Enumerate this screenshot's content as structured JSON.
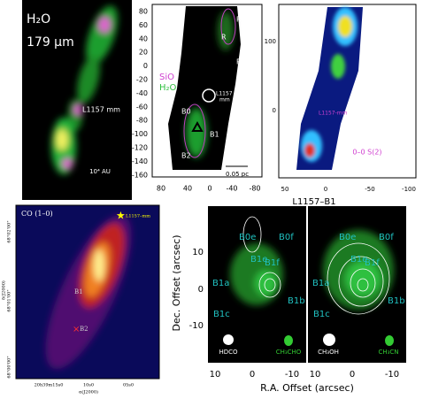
{
  "panel_h2o": {
    "title": "H₂O",
    "wavelength": "179 µm",
    "source": "L1157 mm",
    "scale": "10⁴ AU"
  },
  "panel_sio": {
    "label": "L1157",
    "regions": [
      "R2",
      "R",
      "R0",
      "B0",
      "B1",
      "B2"
    ],
    "legend": [
      "SiO",
      "H₂O"
    ],
    "source": [
      "L1157",
      "mm"
    ],
    "scale": "0.05 pc",
    "yticks": [
      "80",
      "60",
      "40",
      "20",
      "0",
      "-20",
      "-40",
      "-60",
      "-80",
      "-100",
      "-120",
      "-140",
      "-160"
    ],
    "xticks": [
      "80",
      "40",
      "0",
      "-40",
      "-80"
    ]
  },
  "panel_h2": {
    "source": "L1157-mm",
    "line": "0–0 S(2)",
    "yticks": [
      "100",
      "0"
    ],
    "xticks": [
      "50",
      "0",
      "-50",
      "-100"
    ],
    "caption": "L1157–B1"
  },
  "panel_co": {
    "title": "CO (1–0)",
    "source": "L1157–mm",
    "regions": [
      "B1",
      "B2"
    ],
    "yticks": [
      "68°02'00\"",
      "68°01'00\"",
      "68°00'00\""
    ],
    "xticks": [
      "20h39m15s0",
      "10s0",
      "05s0"
    ],
    "ylabel": "δ(J2000)",
    "xlabel": "α(J2000)"
  },
  "panel_b1": {
    "maps": [
      {
        "knots": [
          "B0e",
          "B0f",
          "B1e",
          "B1f",
          "B1a",
          "B1b",
          "B1c"
        ],
        "beams": [
          "HDCO",
          "CH₃CHO"
        ],
        "xticks": [
          "10",
          "0",
          "-10"
        ]
      },
      {
        "knots": [
          "B0e",
          "B0f",
          "B1e",
          "B1f",
          "B1a",
          "B1b",
          "B1c"
        ],
        "beams": [
          "CH₃OH",
          "CH₃CN"
        ],
        "xticks": [
          "10",
          "0",
          "-10"
        ]
      }
    ],
    "yticks": [
      "10",
      "0",
      "-10"
    ],
    "ylabel": "Dec. Offset (arcsec)",
    "xlabel": "R.A. Offset (arcsec)"
  }
}
